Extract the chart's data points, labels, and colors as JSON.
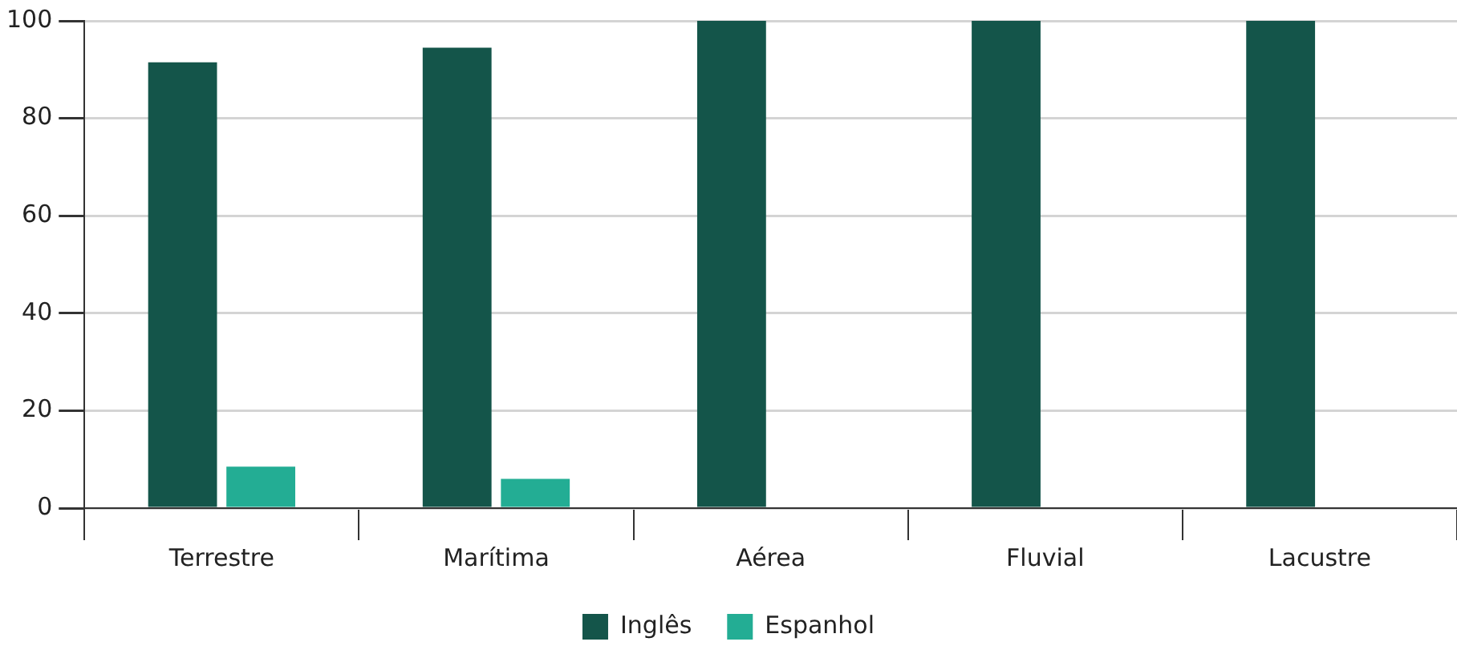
{
  "chart_data": {
    "type": "bar",
    "categories": [
      "Terrestre",
      "Marítima",
      "Aérea",
      "Fluvial",
      "Lacustre"
    ],
    "series": [
      {
        "name": "Inglês",
        "color": "#14554a",
        "values": [
          91.5,
          94.5,
          100,
          100,
          100
        ]
      },
      {
        "name": "Espanhol",
        "color": "#23ad94",
        "values": [
          8.5,
          6,
          0,
          0,
          0
        ]
      }
    ],
    "ylim": [
      0,
      100
    ],
    "yticks": [
      0,
      20,
      40,
      60,
      80,
      100
    ],
    "grid": "y",
    "legend": "bottom"
  }
}
